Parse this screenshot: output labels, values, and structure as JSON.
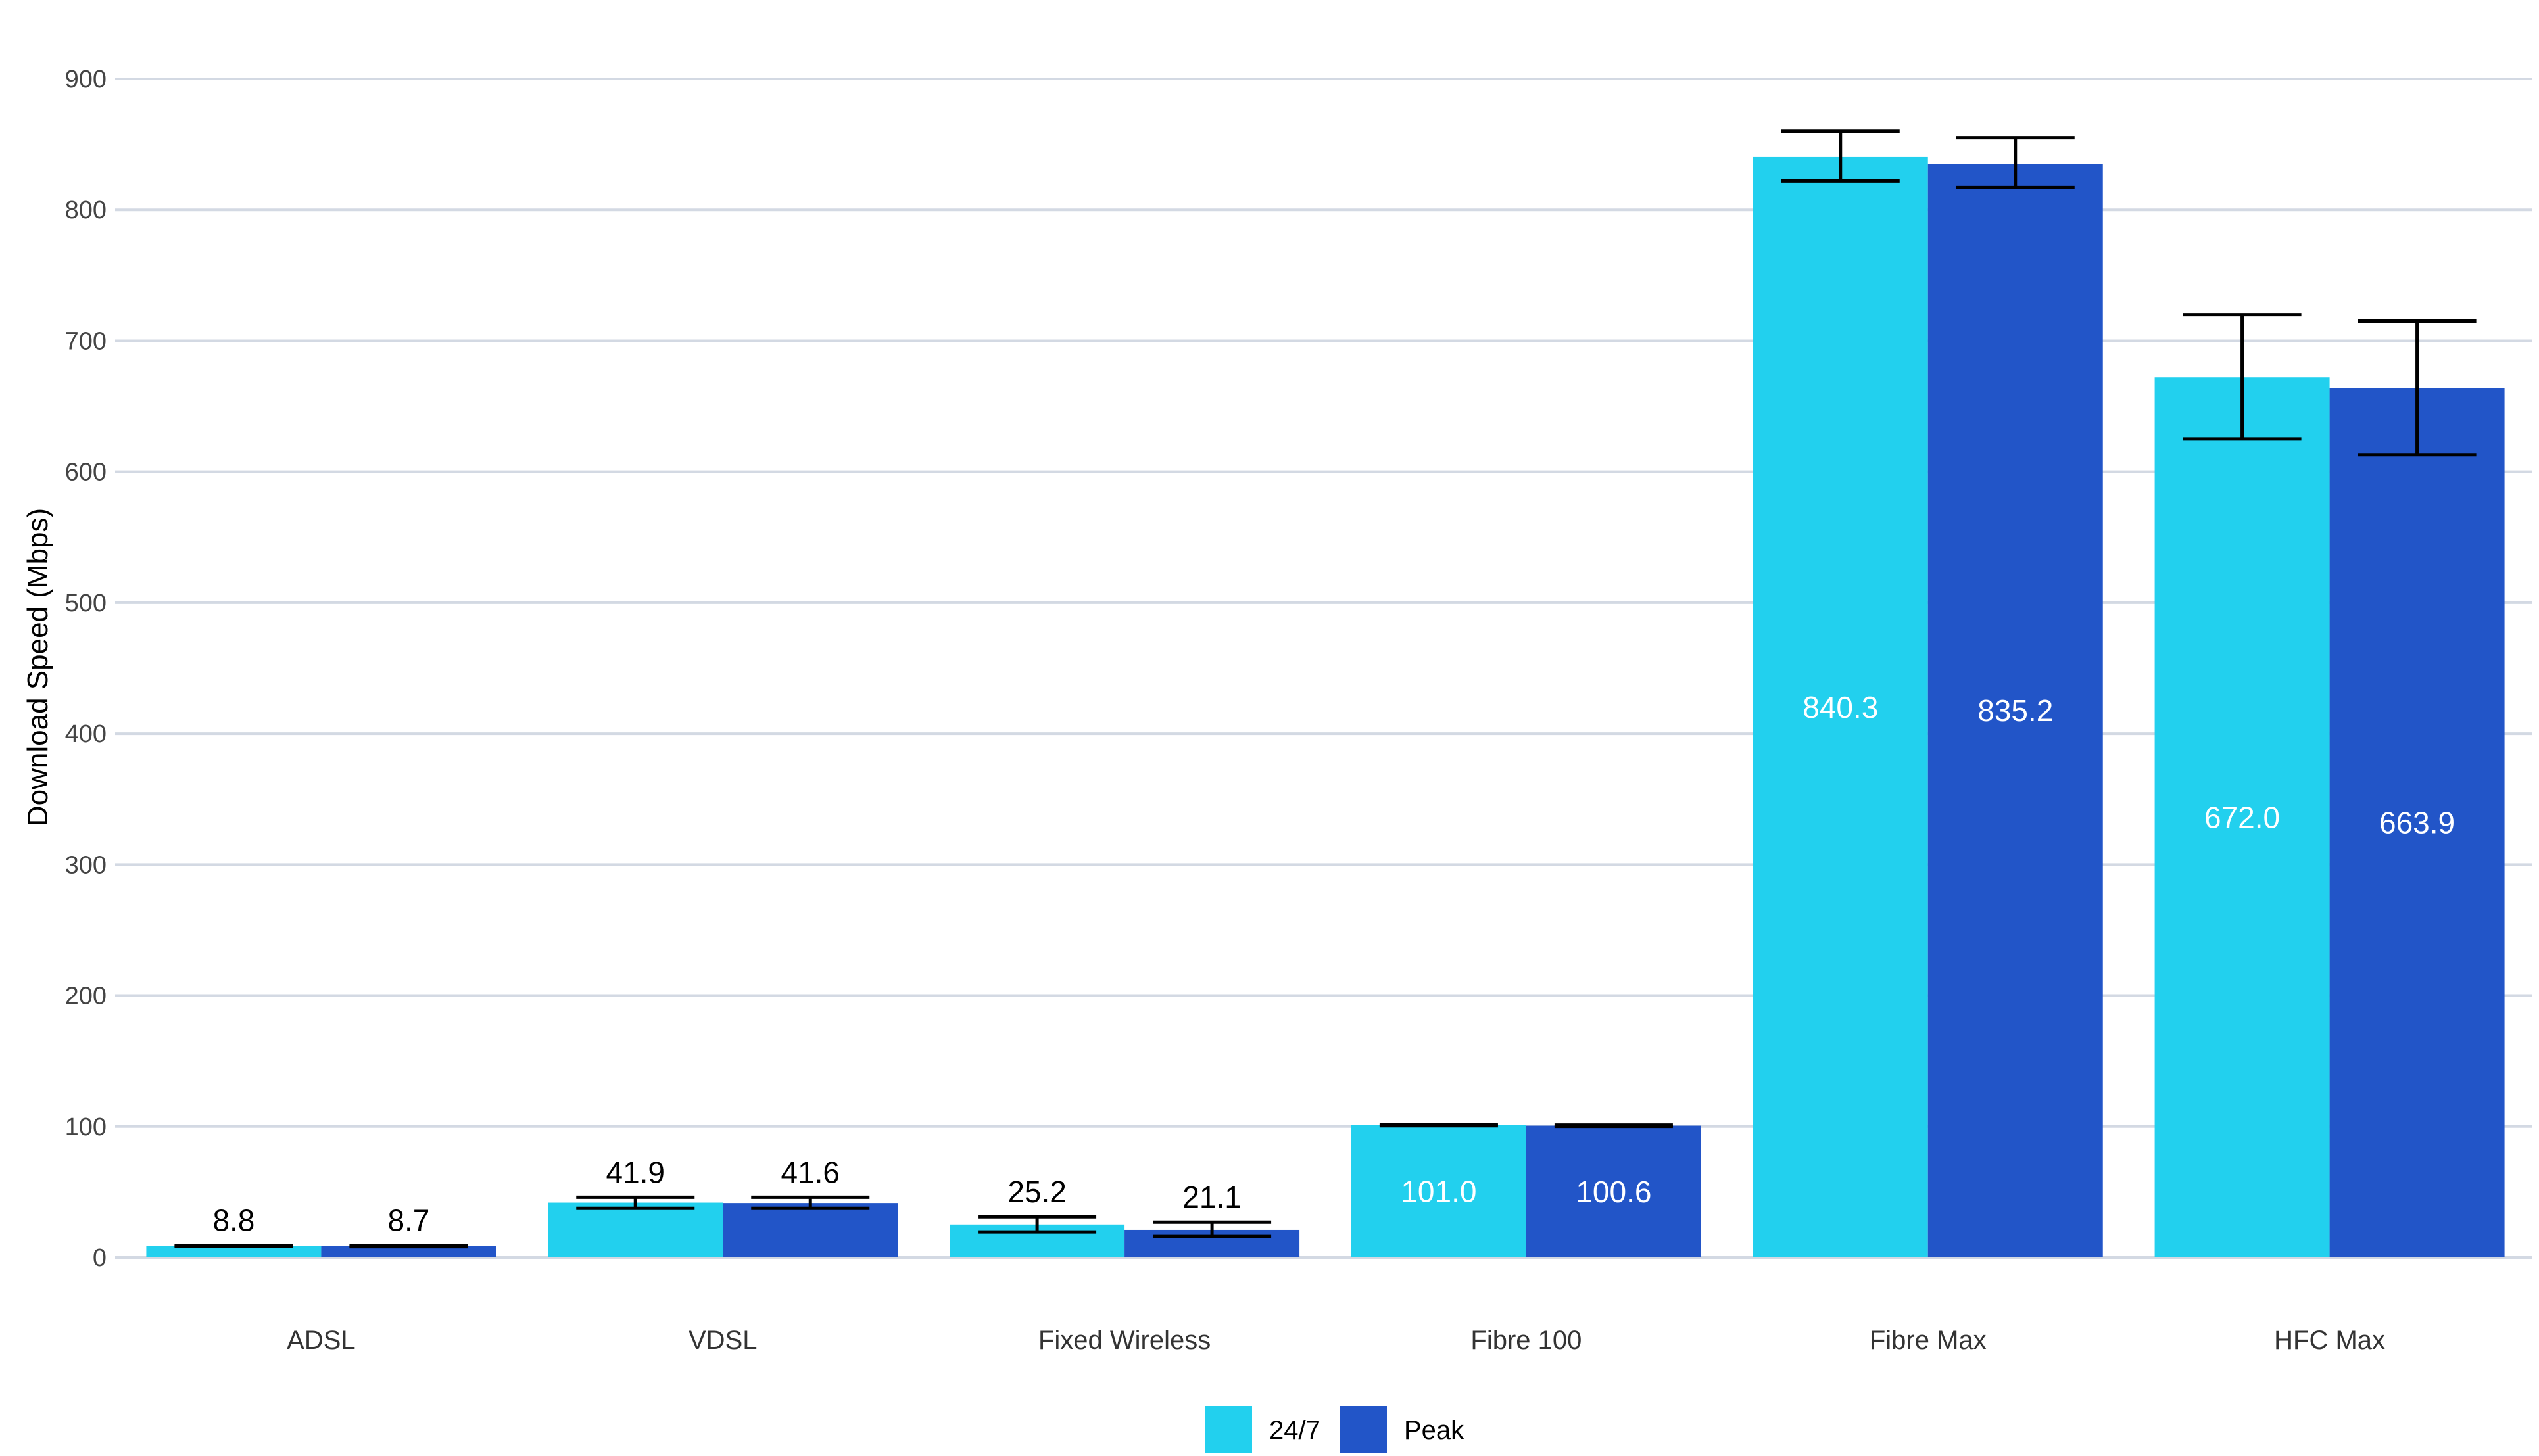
{
  "chart_data": {
    "type": "bar",
    "title": "",
    "xlabel": "",
    "ylabel": "Download Speed (Mbps)",
    "ylim": [
      0,
      900
    ],
    "yticks": [
      0,
      100,
      200,
      300,
      400,
      500,
      600,
      700,
      800,
      900
    ],
    "grid": true,
    "legend_position": "bottom",
    "categories": [
      "ADSL",
      "VDSL",
      "Fixed Wireless",
      "Fibre 100",
      "Fibre Max",
      "HFC Max"
    ],
    "series": [
      {
        "name": "24/7",
        "color": "#22d0ee",
        "values": [
          8.8,
          41.9,
          25.2,
          101.0,
          840.3,
          672.0
        ],
        "labels": [
          "8.8",
          "41.9",
          "25.2",
          "101.0",
          "840.3",
          "672.0"
        ],
        "error_low": [
          8.3,
          37.5,
          19.5,
          100.5,
          822,
          625
        ],
        "error_high": [
          9.3,
          46.0,
          31.0,
          101.5,
          860,
          720
        ]
      },
      {
        "name": "Peak",
        "color": "#2255c8",
        "values": [
          8.7,
          41.6,
          21.1,
          100.6,
          835.2,
          663.9
        ],
        "labels": [
          "8.7",
          "41.6",
          "21.1",
          "100.6",
          "835.2",
          "663.9"
        ],
        "error_low": [
          8.2,
          37.5,
          16.0,
          100.1,
          817,
          613
        ],
        "error_high": [
          9.2,
          46.0,
          27.0,
          101.1,
          855,
          715
        ]
      }
    ]
  }
}
